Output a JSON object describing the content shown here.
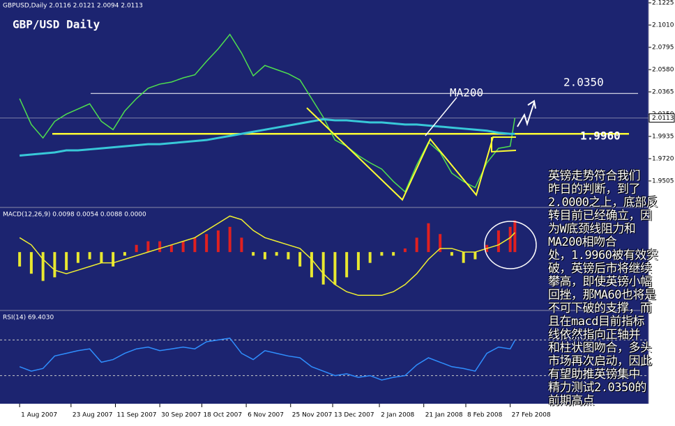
{
  "chart_data": [
    {
      "type": "line",
      "header": "GBPUSD,Daily  2.0116 2.0121 2.0094 2.0113",
      "title": "GBP/USD Daily",
      "x": [
        0,
        5,
        10,
        15,
        20,
        25,
        30,
        35,
        40,
        45,
        50,
        55,
        60,
        65,
        70,
        75,
        80,
        85,
        90,
        95,
        100,
        105,
        110,
        115,
        120,
        125,
        130,
        135,
        140,
        145,
        150,
        155,
        160,
        165,
        170,
        175,
        180,
        185,
        190,
        195,
        200,
        205,
        210,
        212
      ],
      "xlim": [
        -8.4,
        269.2
      ],
      "xticks": [
        {
          "value": 0,
          "label": "1 Aug 2007"
        },
        {
          "value": 22,
          "label": "23 Aug 2007"
        },
        {
          "value": 41,
          "label": "11 Sep 2007"
        },
        {
          "value": 60,
          "label": "30 Sep 2007"
        },
        {
          "value": 78,
          "label": "18 Oct 2007"
        },
        {
          "value": 97,
          "label": "6 Nov 2007"
        },
        {
          "value": 116,
          "label": "25 Nov 2007"
        },
        {
          "value": 134,
          "label": "13 Dec 2007"
        },
        {
          "value": 154,
          "label": "2 Jan 2008"
        },
        {
          "value": 173,
          "label": "21 Jan 2008"
        },
        {
          "value": 191,
          "label": "8 Feb 2008"
        },
        {
          "value": 210,
          "label": "27 Feb 2008"
        }
      ],
      "ylim": [
        1.9256,
        2.1252
      ],
      "yticks": [
        1.9505,
        {
          "value": 1.972,
          "label": "1.9720"
        },
        1.9935,
        {
          "value": 2.015,
          "label": "2.0150"
        },
        2.0365,
        {
          "value": 2.058,
          "label": "2.0580"
        },
        2.0795,
        {
          "value": 2.101,
          "label": "2.1010"
        },
        2.1225
      ],
      "last_price": 2.0113,
      "series": [
        {
          "color": "#4ee04e",
          "values": [
            2.03,
            2.005,
            1.992,
            2.008,
            2.015,
            2.02,
            2.025,
            2.008,
            2.0,
            2.018,
            2.03,
            2.04,
            2.044,
            2.046,
            2.05,
            2.053,
            2.066,
            2.078,
            2.092,
            2.074,
            2.052,
            2.062,
            2.058,
            2.054,
            2.048,
            2.03,
            2.012,
            1.99,
            1.984,
            1.975,
            1.968,
            1.962,
            1.95,
            1.94,
            1.966,
            1.988,
            1.978,
            1.958,
            1.95,
            1.944,
            1.968,
            1.982,
            1.984,
            2.0113
          ]
        },
        {
          "color": "#38c8d8",
          "values": [
            1.975,
            1.976,
            1.977,
            1.978,
            1.98,
            1.98,
            1.981,
            1.982,
            1.983,
            1.984,
            1.985,
            1.986,
            1.986,
            1.987,
            1.988,
            1.989,
            1.99,
            1.992,
            1.994,
            1.996,
            1.998,
            2.0,
            2.002,
            2.004,
            2.006,
            2.008,
            2.01,
            2.009,
            2.009,
            2.008,
            2.007,
            2.007,
            2.006,
            2.005,
            2.005,
            2.004,
            2.003,
            2.002,
            2.001,
            2.0,
            1.999,
            1.997,
            1.996,
            1.996
          ]
        }
      ],
      "levels": [
        {
          "value": 2.035,
          "label": "2.0350",
          "color": "#ffffff"
        },
        {
          "value": 1.996,
          "label": "1.9960",
          "color": "#ffff33"
        }
      ],
      "annotations": [
        "MA200"
      ],
      "note_lines": [
        "英镑走势符合我们",
        "昨日的判断，到了",
        "2.0000之上，底部反",
        "转目前已经确立，因",
        "为W底颈线阻力和",
        "MA200相吻合",
        "处，1.9960被有效突",
        "破，英镑后市将继续",
        "攀高，即使英镑小幅",
        "回挫，那MA60也将是",
        "不可下破的支撑，而",
        "且在macd目前指标",
        "线依然指向正轴并",
        "和柱状图吻合，多头",
        "市场再次启动，因此",
        "有望助推英镑集中",
        "精力测试2.0350的",
        "前期高点"
      ]
    },
    {
      "type": "bar",
      "header": "MACD(12,26,9) 0.0098 0.0054 0.0088 0.0000",
      "x": [
        0,
        5,
        10,
        15,
        20,
        25,
        30,
        35,
        40,
        45,
        50,
        55,
        60,
        65,
        70,
        75,
        80,
        85,
        90,
        95,
        100,
        105,
        110,
        115,
        120,
        125,
        130,
        135,
        140,
        145,
        150,
        155,
        160,
        165,
        170,
        175,
        180,
        185,
        190,
        195,
        200,
        205,
        210,
        212
      ],
      "xlim": [
        -8.4,
        269.2
      ],
      "ylim": [
        -0.016,
        0.012
      ],
      "colors": {
        "positive": "#e02020",
        "negative": "#e8e830"
      },
      "values": [
        -0.004,
        -0.006,
        -0.008,
        -0.007,
        -0.005,
        -0.003,
        -0.002,
        -0.003,
        -0.004,
        -0.001,
        0.002,
        0.003,
        0.003,
        0.002,
        0.003,
        0.004,
        0.005,
        0.006,
        0.007,
        0.004,
        -0.001,
        -0.002,
        -0.001,
        -0.002,
        -0.004,
        -0.007,
        -0.009,
        -0.009,
        -0.007,
        -0.005,
        -0.003,
        -0.001,
        -0.001,
        0.001,
        0.004,
        0.008,
        0.005,
        -0.001,
        -0.003,
        -0.002,
        0.002,
        0.006,
        0.007,
        0.0088
      ],
      "series": [
        {
          "color": "#f0f030",
          "values": [
            0.004,
            0.002,
            -0.002,
            -0.005,
            -0.006,
            -0.005,
            -0.004,
            -0.003,
            -0.003,
            -0.002,
            -0.001,
            0.0,
            0.001,
            0.002,
            0.003,
            0.004,
            0.006,
            0.008,
            0.01,
            0.009,
            0.006,
            0.004,
            0.003,
            0.002,
            0.001,
            -0.002,
            -0.006,
            -0.009,
            -0.011,
            -0.012,
            -0.012,
            -0.012,
            -0.011,
            -0.009,
            -0.006,
            -0.002,
            0.001,
            0.001,
            0.0,
            0.0,
            0.001,
            0.002,
            0.004,
            0.0054
          ]
        }
      ]
    },
    {
      "type": "line",
      "header": "RSI(14) 69.4030",
      "x": [
        0,
        5,
        10,
        15,
        20,
        25,
        30,
        35,
        40,
        45,
        50,
        55,
        60,
        65,
        70,
        75,
        80,
        85,
        90,
        95,
        100,
        105,
        110,
        115,
        120,
        125,
        130,
        135,
        140,
        145,
        150,
        155,
        160,
        165,
        170,
        175,
        180,
        185,
        190,
        195,
        200,
        205,
        210,
        212
      ],
      "xlim": [
        -8.4,
        269.2
      ],
      "ylim": [
        0,
        100
      ],
      "levels": [
        70,
        30
      ],
      "series": [
        {
          "color": "#2f8fff",
          "values": [
            40,
            35,
            38,
            52,
            55,
            58,
            60,
            45,
            48,
            55,
            60,
            62,
            58,
            60,
            62,
            60,
            68,
            70,
            72,
            55,
            48,
            58,
            55,
            52,
            50,
            40,
            35,
            30,
            32,
            28,
            30,
            25,
            28,
            30,
            42,
            50,
            45,
            40,
            38,
            35,
            55,
            62,
            60,
            69.403
          ]
        }
      ]
    }
  ]
}
